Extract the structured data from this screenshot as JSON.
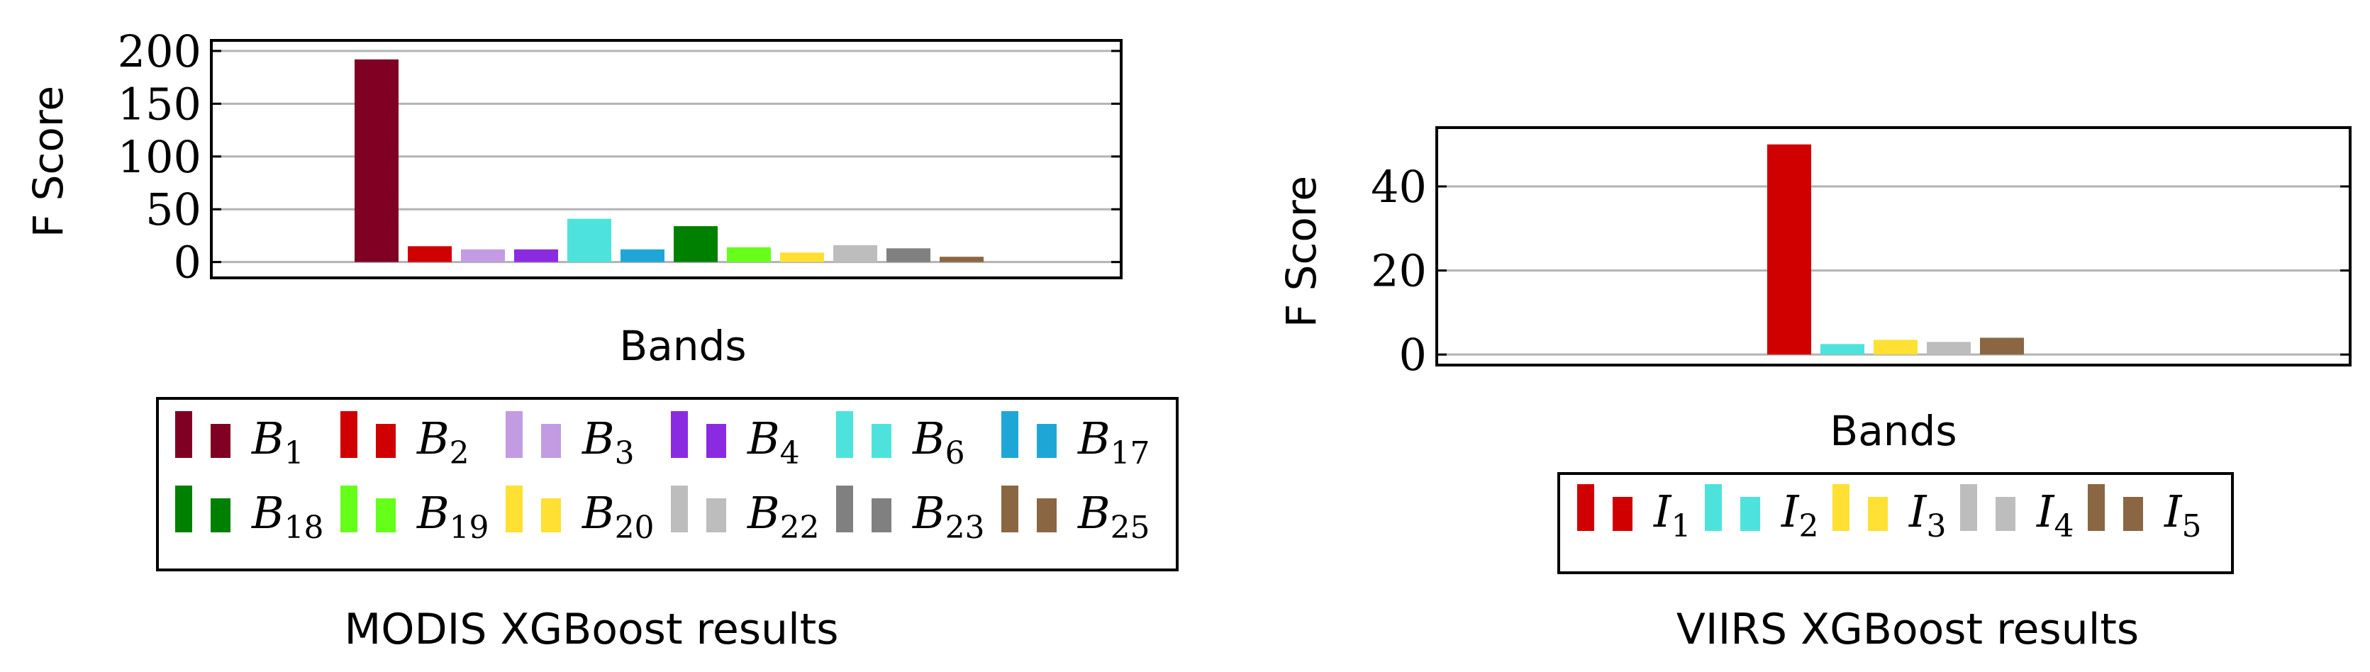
{
  "chart_data": [
    {
      "type": "bar",
      "title": "",
      "caption": "MODIS XGBoost results",
      "xlabel": "Bands",
      "ylabel": "F Score",
      "ylim": [
        -15,
        210
      ],
      "yticks": [
        0,
        50,
        100,
        150,
        200
      ],
      "grid": true,
      "legend_position": "bottom",
      "series": [
        {
          "name": "B",
          "sub": "1",
          "value": 192,
          "color": "#7f0023"
        },
        {
          "name": "B",
          "sub": "2",
          "value": 15,
          "color": "#d10000"
        },
        {
          "name": "B",
          "sub": "3",
          "value": 12,
          "color": "#c39be3"
        },
        {
          "name": "B",
          "sub": "4",
          "value": 12,
          "color": "#8a2be2"
        },
        {
          "name": "B",
          "sub": "6",
          "value": 41,
          "color": "#4de3dc"
        },
        {
          "name": "B",
          "sub": "17",
          "value": 12,
          "color": "#1ea7d6"
        },
        {
          "name": "B",
          "sub": "18",
          "value": 34,
          "color": "#008000"
        },
        {
          "name": "B",
          "sub": "19",
          "value": 14,
          "color": "#66ff1a"
        },
        {
          "name": "B",
          "sub": "20",
          "value": 9,
          "color": "#ffe033"
        },
        {
          "name": "B",
          "sub": "22",
          "value": 16,
          "color": "#bdbdbd"
        },
        {
          "name": "B",
          "sub": "23",
          "value": 13,
          "color": "#808080"
        },
        {
          "name": "B",
          "sub": "25",
          "value": 5,
          "color": "#8b6642"
        }
      ]
    },
    {
      "type": "bar",
      "title": "",
      "caption": "VIIRS XGBoost results",
      "xlabel": "Bands",
      "ylabel": "F Score",
      "ylim": [
        -2.5,
        54
      ],
      "yticks": [
        0,
        20,
        40
      ],
      "grid": true,
      "legend_position": "bottom",
      "series": [
        {
          "name": "I",
          "sub": "1",
          "value": 50,
          "color": "#d10000"
        },
        {
          "name": "I",
          "sub": "2",
          "value": 2.5,
          "color": "#4de3dc"
        },
        {
          "name": "I",
          "sub": "3",
          "value": 3.5,
          "color": "#ffe033"
        },
        {
          "name": "I",
          "sub": "4",
          "value": 3,
          "color": "#bdbdbd"
        },
        {
          "name": "I",
          "sub": "5",
          "value": 4,
          "color": "#8b6642"
        }
      ]
    }
  ]
}
